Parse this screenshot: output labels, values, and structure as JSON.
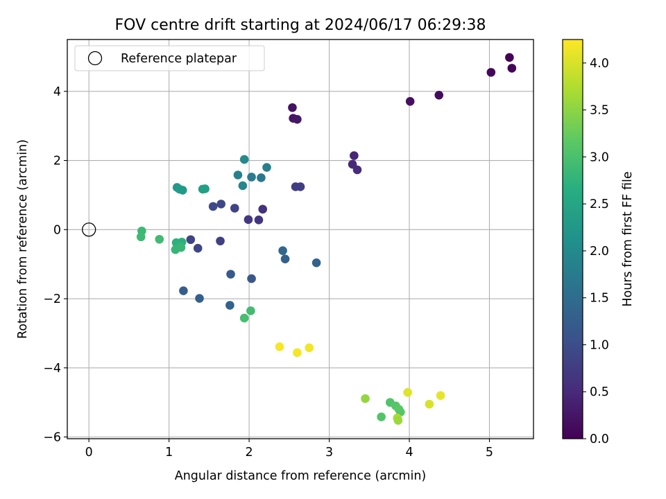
{
  "chart_data": {
    "type": "scatter",
    "title": "FOV centre drift starting at 2024/06/17 06:29:38",
    "xlabel": "Angular distance from reference (arcmin)",
    "ylabel": "Rotation from reference (arcmin)",
    "xlim": [
      -0.27,
      5.55
    ],
    "ylim": [
      -6.05,
      5.5
    ],
    "xticks": [
      0,
      1,
      2,
      3,
      4,
      5
    ],
    "yticks": [
      -6,
      -4,
      -2,
      0,
      2,
      4
    ],
    "grid": true,
    "legend": {
      "placement": "top-left",
      "entries": [
        "Reference platepar"
      ]
    },
    "reference_point": {
      "x": 0,
      "y": 0
    },
    "colorbar": {
      "label": "Hours from first FF file",
      "colormap": "viridis",
      "range": [
        0,
        4.25
      ],
      "ticks": [
        0.0,
        0.5,
        1.0,
        1.5,
        2.0,
        2.5,
        3.0,
        3.5,
        4.0
      ]
    },
    "points": [
      {
        "x": 5.25,
        "y": 4.98,
        "c": 0.03
      },
      {
        "x": 5.28,
        "y": 4.67,
        "c": 0.05
      },
      {
        "x": 5.02,
        "y": 4.55,
        "c": 0.08
      },
      {
        "x": 4.37,
        "y": 3.89,
        "c": 0.13
      },
      {
        "x": 4.01,
        "y": 3.71,
        "c": 0.18
      },
      {
        "x": 2.54,
        "y": 3.53,
        "c": 0.22
      },
      {
        "x": 2.55,
        "y": 3.22,
        "c": 0.25
      },
      {
        "x": 2.6,
        "y": 3.19,
        "c": 0.28
      },
      {
        "x": 3.31,
        "y": 2.14,
        "c": 0.45
      },
      {
        "x": 3.29,
        "y": 1.89,
        "c": 0.48
      },
      {
        "x": 3.35,
        "y": 1.73,
        "c": 0.52
      },
      {
        "x": 2.58,
        "y": 1.24,
        "c": 0.75
      },
      {
        "x": 2.64,
        "y": 1.24,
        "c": 0.78
      },
      {
        "x": 2.17,
        "y": 0.59,
        "c": 0.6
      },
      {
        "x": 2.12,
        "y": 0.28,
        "c": 0.63
      },
      {
        "x": 1.99,
        "y": 0.29,
        "c": 0.68
      },
      {
        "x": 1.82,
        "y": 0.62,
        "c": 0.85
      },
      {
        "x": 1.65,
        "y": 0.74,
        "c": 0.9
      },
      {
        "x": 1.55,
        "y": 0.67,
        "c": 0.95
      },
      {
        "x": 1.64,
        "y": -0.33,
        "c": 0.8
      },
      {
        "x": 1.27,
        "y": -0.29,
        "c": 0.85
      },
      {
        "x": 1.36,
        "y": -0.54,
        "c": 0.88
      },
      {
        "x": 2.42,
        "y": -0.61,
        "c": 1.4
      },
      {
        "x": 2.45,
        "y": -0.85,
        "c": 1.3
      },
      {
        "x": 2.84,
        "y": -0.96,
        "c": 1.35
      },
      {
        "x": 1.77,
        "y": -1.29,
        "c": 1.2
      },
      {
        "x": 2.03,
        "y": -1.42,
        "c": 1.15
      },
      {
        "x": 1.18,
        "y": -1.77,
        "c": 1.25
      },
      {
        "x": 1.38,
        "y": -1.99,
        "c": 1.3
      },
      {
        "x": 1.76,
        "y": -2.19,
        "c": 1.33
      },
      {
        "x": 1.94,
        "y": 2.03,
        "c": 2.0
      },
      {
        "x": 1.86,
        "y": 1.58,
        "c": 1.85
      },
      {
        "x": 2.03,
        "y": 1.52,
        "c": 1.75
      },
      {
        "x": 2.15,
        "y": 1.5,
        "c": 1.7
      },
      {
        "x": 2.22,
        "y": 1.8,
        "c": 1.8
      },
      {
        "x": 1.92,
        "y": 1.27,
        "c": 1.95
      },
      {
        "x": 1.1,
        "y": 1.22,
        "c": 2.25
      },
      {
        "x": 1.13,
        "y": 1.17,
        "c": 2.3
      },
      {
        "x": 1.17,
        "y": 1.14,
        "c": 2.28
      },
      {
        "x": 1.42,
        "y": 1.17,
        "c": 2.35
      },
      {
        "x": 1.45,
        "y": 1.18,
        "c": 2.38
      },
      {
        "x": 1.09,
        "y": -0.38,
        "c": 2.7
      },
      {
        "x": 1.12,
        "y": -0.4,
        "c": 2.72
      },
      {
        "x": 1.16,
        "y": -0.36,
        "c": 2.68
      },
      {
        "x": 1.14,
        "y": -0.47,
        "c": 2.75
      },
      {
        "x": 1.08,
        "y": -0.58,
        "c": 2.8
      },
      {
        "x": 1.15,
        "y": -0.52,
        "c": 2.82
      },
      {
        "x": 0.66,
        "y": -0.04,
        "c": 2.85
      },
      {
        "x": 0.65,
        "y": -0.21,
        "c": 2.88
      },
      {
        "x": 0.88,
        "y": -0.28,
        "c": 2.9
      },
      {
        "x": 2.02,
        "y": -2.35,
        "c": 2.92
      },
      {
        "x": 1.94,
        "y": -2.56,
        "c": 2.95
      },
      {
        "x": 3.45,
        "y": -4.89,
        "c": 3.55
      },
      {
        "x": 3.76,
        "y": -5.0,
        "c": 3.05
      },
      {
        "x": 3.83,
        "y": -5.1,
        "c": 3.1
      },
      {
        "x": 3.87,
        "y": -5.2,
        "c": 3.15
      },
      {
        "x": 3.89,
        "y": -5.28,
        "c": 3.12
      },
      {
        "x": 3.65,
        "y": -5.42,
        "c": 3.08
      },
      {
        "x": 3.85,
        "y": -5.45,
        "c": 3.7
      },
      {
        "x": 3.86,
        "y": -5.52,
        "c": 3.6
      },
      {
        "x": 3.98,
        "y": -4.71,
        "c": 4.05
      },
      {
        "x": 4.39,
        "y": -4.8,
        "c": 4.1
      },
      {
        "x": 4.25,
        "y": -5.05,
        "c": 4.0
      },
      {
        "x": 2.38,
        "y": -3.39,
        "c": 4.22
      },
      {
        "x": 2.6,
        "y": -3.56,
        "c": 4.2
      },
      {
        "x": 2.75,
        "y": -3.42,
        "c": 4.18
      }
    ]
  }
}
